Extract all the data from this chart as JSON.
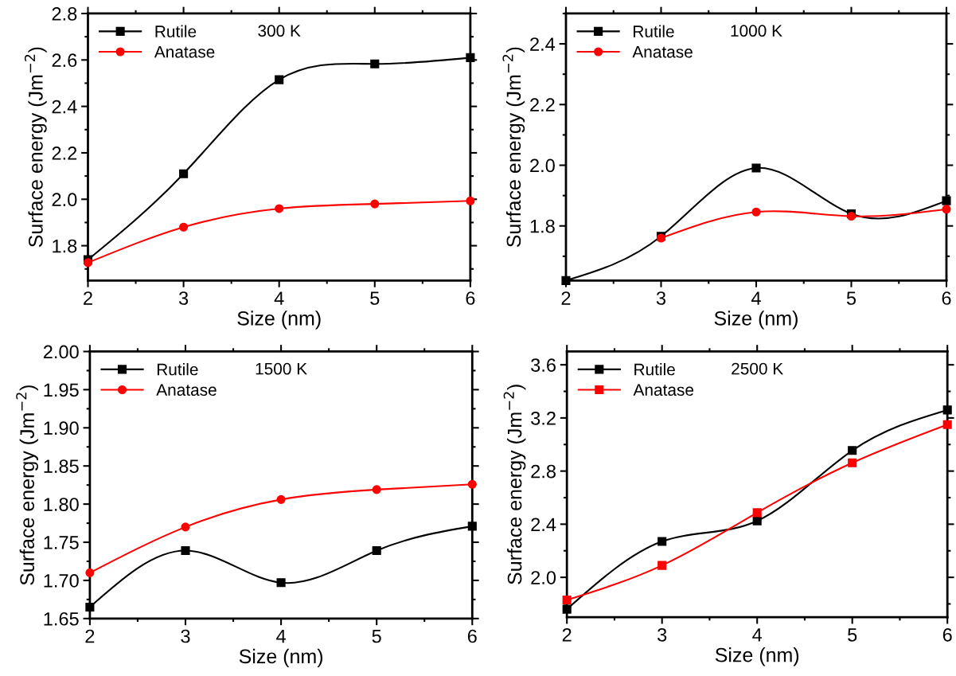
{
  "chart_data": [
    {
      "type": "line",
      "x": [
        2,
        3,
        4,
        5,
        6
      ],
      "xlabel": "Size (nm)",
      "ylabel": "Surface energy (Jm$^{−2}$)",
      "annotations": [
        "300 K"
      ],
      "xlim": [
        2,
        6
      ],
      "xticks": [
        2,
        3,
        4,
        5,
        6
      ],
      "ylim": [
        1.65,
        2.8
      ],
      "yticks": [
        1.8,
        {
          "value": 2.0,
          "label": "2.0"
        },
        2.2,
        2.4,
        2.6,
        2.8
      ],
      "legend": "top left",
      "grid": false,
      "series": [
        {
          "name": "Rutile",
          "color": "#000000",
          "marker": "square",
          "values": [
            1.74,
            2.11,
            2.515,
            2.583,
            2.61
          ]
        },
        {
          "name": "Anatase",
          "color": "#ff0000",
          "marker": "circle",
          "values": [
            1.727,
            1.88,
            1.96,
            1.98,
            1.993
          ]
        }
      ]
    },
    {
      "type": "line",
      "x": [
        2,
        3,
        4,
        5,
        6
      ],
      "xlabel": "Size (nm)",
      "ylabel": "Surface energy (Jm$^{−2}$)",
      "annotations": [
        "1000 K"
      ],
      "xlim": [
        2,
        6
      ],
      "xticks": [
        2,
        3,
        4,
        5,
        6
      ],
      "ylim": [
        1.62,
        2.5
      ],
      "yticks": [
        1.8,
        {
          "value": 2.0,
          "label": "2.0"
        },
        2.2,
        2.4
      ],
      "legend": "top left",
      "grid": false,
      "series": [
        {
          "name": "Rutile",
          "color": "#000000",
          "marker": "square",
          "values": [
            1.62,
            1.766,
            1.991,
            1.84,
            1.883
          ]
        },
        {
          "name": "Anatase",
          "color": "#ff0000",
          "marker": "circle",
          "values": [
            null,
            1.76,
            1.846,
            1.832,
            1.855
          ]
        }
      ]
    },
    {
      "type": "line",
      "x": [
        2,
        3,
        4,
        5,
        6
      ],
      "xlabel": "Size (nm)",
      "ylabel": "Surface energy (Jm$^{−2}$)",
      "annotations": [
        "1500 K"
      ],
      "xlim": [
        2,
        6
      ],
      "xticks": [
        2,
        3,
        4,
        5,
        6
      ],
      "ylim": [
        1.65,
        2.0
      ],
      "yticks": [
        {
          "value": 1.65,
          "label": "1.65"
        },
        {
          "value": 1.7,
          "label": "1.70"
        },
        {
          "value": 1.75,
          "label": "1.75"
        },
        {
          "value": 1.8,
          "label": "1.80"
        },
        {
          "value": 1.85,
          "label": "1.85"
        },
        {
          "value": 1.9,
          "label": "1.90"
        },
        {
          "value": 1.95,
          "label": "1.95"
        },
        {
          "value": 2.0,
          "label": "2.00"
        }
      ],
      "legend": "top left",
      "grid": false,
      "series": [
        {
          "name": "Rutile",
          "color": "#000000",
          "marker": "square",
          "values": [
            1.665,
            1.739,
            1.697,
            1.739,
            1.771
          ]
        },
        {
          "name": "Anatase",
          "color": "#ff0000",
          "marker": "circle",
          "values": [
            1.71,
            1.77,
            1.806,
            1.819,
            1.826
          ]
        }
      ]
    },
    {
      "type": "line",
      "x": [
        2,
        3,
        4,
        5,
        6
      ],
      "xlabel": "Size (nm)",
      "ylabel": "Surface energy (Jm$^{−2}$)",
      "annotations": [
        "2500 K"
      ],
      "xlim": [
        2,
        6
      ],
      "xticks": [
        2,
        3,
        4,
        5,
        6
      ],
      "ylim": [
        1.7,
        3.7
      ],
      "yticks": [
        {
          "value": 2.0,
          "label": "2.0"
        },
        {
          "value": 2.4,
          "label": "2.4"
        },
        {
          "value": 2.8,
          "label": "2.8"
        },
        {
          "value": 3.2,
          "label": "3.2"
        },
        {
          "value": 3.6,
          "label": "3.6"
        }
      ],
      "legend": "top left",
      "grid": false,
      "series": [
        {
          "name": "Rutile",
          "color": "#000000",
          "marker": "square",
          "values": [
            1.76,
            2.27,
            2.425,
            2.955,
            3.26
          ]
        },
        {
          "name": "Anatase",
          "color": "#ff0000",
          "marker": "square",
          "values": [
            1.83,
            2.09,
            2.487,
            2.862,
            3.15
          ]
        }
      ]
    }
  ]
}
